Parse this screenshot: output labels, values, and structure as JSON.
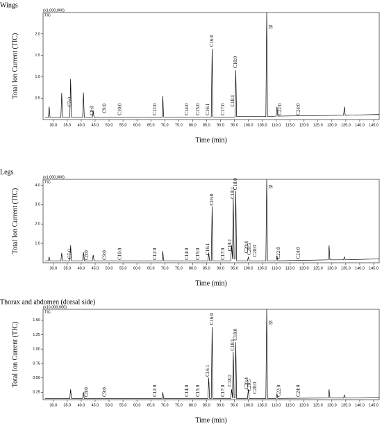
{
  "chart_data": [
    {
      "type": "line",
      "title": "Wings",
      "scale_note": "(x1,000,000)",
      "trace_label": "TIC",
      "ylabel": "Total Ion Current (TIC)",
      "xlabel": "Time (min)",
      "color": "#000000",
      "xlim": [
        26.3,
        147
      ],
      "ylim": [
        0,
        2.5
      ],
      "xticks": [
        {
          "value": 30,
          "label": "30.0"
        },
        {
          "value": 35,
          "label": "35.0"
        },
        {
          "value": 40,
          "label": "40.0"
        },
        {
          "value": 45,
          "label": "45.0"
        },
        {
          "value": 50,
          "label": "50.0"
        },
        {
          "value": 55,
          "label": "55.0"
        },
        {
          "value": 60,
          "label": "60.0"
        },
        {
          "value": 65,
          "label": "65.0"
        },
        {
          "value": 70,
          "label": "70.0"
        },
        {
          "value": 75,
          "label": "75.0"
        },
        {
          "value": 80,
          "label": "80.0"
        },
        {
          "value": 85,
          "label": "85.0"
        },
        {
          "value": 90,
          "label": "90.0"
        },
        {
          "value": 95,
          "label": "95.0"
        },
        {
          "value": 100,
          "label": "100.0"
        },
        {
          "value": 105,
          "label": "105.0"
        },
        {
          "value": 110,
          "label": "110.0"
        },
        {
          "value": 115,
          "label": "115.0"
        },
        {
          "value": 120,
          "label": "120.0"
        },
        {
          "value": 125,
          "label": "125.0"
        },
        {
          "value": 130,
          "label": "130.0"
        },
        {
          "value": 135,
          "label": "135.0"
        },
        {
          "value": 140,
          "label": "140.0"
        },
        {
          "value": 145,
          "label": "145.0"
        }
      ],
      "yticks": [
        0.5,
        {
          "value": 1,
          "label": "1.0"
        },
        1.5,
        {
          "value": 2,
          "label": "2.0"
        }
      ],
      "x": [
        27,
        28.2,
        28.5,
        28.8,
        32.7,
        33,
        33.3,
        35.9,
        36.2,
        36.5,
        40.5,
        40.8,
        41.1,
        44,
        44.3,
        44.6,
        69,
        69.3,
        69.6,
        86.7,
        87,
        87.3,
        95.2,
        95.5,
        95.8,
        106.3,
        106.6,
        106.9,
        110,
        110.3,
        110.6,
        134.2,
        134.5,
        134.8,
        147
      ],
      "values": [
        0.05,
        0.05,
        0.3,
        0.05,
        0.05,
        0.62,
        0.05,
        0.05,
        0.95,
        0.05,
        0.05,
        0.63,
        0.05,
        0.05,
        0.2,
        0.05,
        0.05,
        0.55,
        0.06,
        0.06,
        1.65,
        0.06,
        0.06,
        1.15,
        0.07,
        0.07,
        2.5,
        0.07,
        0.08,
        0.3,
        0.08,
        0.1,
        0.3,
        0.1,
        0.12
      ],
      "annotations": [
        {
          "text": "C7:0",
          "x": 36,
          "y": 0.3
        },
        {
          "text": "C8:0",
          "x": 44,
          "y": 0.1
        },
        {
          "text": "C9:0",
          "x": 48.5,
          "y": 0.15
        },
        {
          "text": "C10:0",
          "x": 54,
          "y": 0.1
        },
        {
          "text": "C12:0",
          "x": 66.5,
          "y": 0.1
        },
        {
          "text": "C14:0",
          "x": 78,
          "y": 0.1
        },
        {
          "text": "C15:0",
          "x": 82,
          "y": 0.1
        },
        {
          "text": "C16:1",
          "x": 85.5,
          "y": 0.1
        },
        {
          "text": "C16:0",
          "x": 87,
          "y": 1.7
        },
        {
          "text": "C17:0",
          "x": 91,
          "y": 0.1
        },
        {
          "text": "C18:1",
          "x": 94.5,
          "y": 0.3
        },
        {
          "text": "C18:0",
          "x": 95.5,
          "y": 1.2
        },
        {
          "text": "IS",
          "x": 108,
          "y": 2.15,
          "orientation": "horizontal"
        },
        {
          "text": "C22:0",
          "x": 111.5,
          "y": 0.1
        },
        {
          "text": "C24:0",
          "x": 118,
          "y": 0.1
        }
      ]
    },
    {
      "type": "line",
      "title": "Legs",
      "scale_note": "(x1,000,000)",
      "trace_label": "TIC",
      "ylabel": "Total Ion Current (TIC)",
      "xlabel": "Time (min)",
      "color": "#000000",
      "xlim": [
        26.3,
        147
      ],
      "ylim": [
        0,
        4.3
      ],
      "xticks": [
        {
          "value": 30,
          "label": "30.0"
        },
        {
          "value": 35,
          "label": "35.0"
        },
        {
          "value": 40,
          "label": "40.0"
        },
        {
          "value": 45,
          "label": "45.0"
        },
        {
          "value": 50,
          "label": "50.0"
        },
        {
          "value": 55,
          "label": "55.0"
        },
        {
          "value": 60,
          "label": "60.0"
        },
        {
          "value": 65,
          "label": "65.0"
        },
        {
          "value": 70,
          "label": "70.0"
        },
        {
          "value": 75,
          "label": "75.0"
        },
        {
          "value": 80,
          "label": "80.0"
        },
        {
          "value": 85,
          "label": "85.0"
        },
        {
          "value": 90,
          "label": "90.0"
        },
        {
          "value": 95,
          "label": "95.0"
        },
        {
          "value": 100,
          "label": "100.0"
        },
        {
          "value": 105,
          "label": "105.0"
        },
        {
          "value": 110,
          "label": "110.0"
        },
        {
          "value": 115,
          "label": "115.0"
        },
        {
          "value": 120,
          "label": "120.0"
        },
        {
          "value": 125,
          "label": "125.0"
        },
        {
          "value": 130,
          "label": "130.0"
        },
        {
          "value": 135,
          "label": "135.0"
        },
        {
          "value": 140,
          "label": "140.0"
        },
        {
          "value": 145,
          "label": "145.0"
        }
      ],
      "yticks": [
        {
          "value": 1,
          "label": "1.0"
        },
        {
          "value": 2,
          "label": "2.0"
        },
        {
          "value": 3,
          "label": "3.0"
        },
        {
          "value": 4,
          "label": "4.0"
        }
      ],
      "x": [
        27,
        28.2,
        28.5,
        28.8,
        32.7,
        33,
        33.3,
        35.9,
        36.2,
        36.5,
        40.5,
        40.8,
        41.1,
        44,
        44.3,
        44.6,
        69,
        69.3,
        69.6,
        85.5,
        85.8,
        86.1,
        86.7,
        87,
        87.3,
        93.7,
        94,
        94.3,
        94.6,
        94.9,
        95.2,
        95.5,
        95.8,
        99.7,
        100,
        100.3,
        106.3,
        106.6,
        106.9,
        110,
        110.3,
        110.6,
        128.7,
        129,
        129.3,
        134.2,
        134.5,
        134.8,
        147
      ],
      "values": [
        0.1,
        0.1,
        0.3,
        0.1,
        0.1,
        0.5,
        0.1,
        0.1,
        0.9,
        0.1,
        0.1,
        0.55,
        0.1,
        0.1,
        0.4,
        0.1,
        0.1,
        0.6,
        0.1,
        0.1,
        0.5,
        0.1,
        0.1,
        2.9,
        0.1,
        0.1,
        0.9,
        0.2,
        3.3,
        0.2,
        0.2,
        3.7,
        0.1,
        0.1,
        0.3,
        0.1,
        0.1,
        4.3,
        0.1,
        0.1,
        0.35,
        0.1,
        0.15,
        0.9,
        0.15,
        0.15,
        0.3,
        0.15,
        0.2
      ],
      "annotations": [
        {
          "text": "C7:0",
          "x": 36,
          "y": 0.2
        },
        {
          "text": "C8:0",
          "x": 42,
          "y": 0.15
        },
        {
          "text": "C9:0",
          "x": 48.5,
          "y": 0.15
        },
        {
          "text": "C10:0",
          "x": 54,
          "y": 0.15
        },
        {
          "text": "C12:0",
          "x": 66.5,
          "y": 0.15
        },
        {
          "text": "C14:0",
          "x": 78,
          "y": 0.15
        },
        {
          "text": "C15:0",
          "x": 82,
          "y": 0.15
        },
        {
          "text": "C16:1",
          "x": 85.5,
          "y": 0.4
        },
        {
          "text": "C16:0",
          "x": 87,
          "y": 2.95
        },
        {
          "text": "C17:0",
          "x": 91,
          "y": 0.15
        },
        {
          "text": "C18:2",
          "x": 93.5,
          "y": 0.6
        },
        {
          "text": "C18:1",
          "x": 94.5,
          "y": 3.3
        },
        {
          "text": "C18:0",
          "x": 95.5,
          "y": 3.75
        },
        {
          "text": "C20:4",
          "x": 99.5,
          "y": 0.5
        },
        {
          "text": "C20:5",
          "x": 100.5,
          "y": 0.4
        },
        {
          "text": "C20:0",
          "x": 102.5,
          "y": 0.3
        },
        {
          "text": "IS",
          "x": 108,
          "y": 3.9,
          "orientation": "horizontal"
        },
        {
          "text": "C22:0",
          "x": 111,
          "y": 0.2
        },
        {
          "text": "C24:0",
          "x": 118,
          "y": 0.2
        }
      ]
    },
    {
      "type": "line",
      "title": "Thorax and abdomen (dorsal side)",
      "scale_note": "(x10,000,000)",
      "trace_label": "TIC",
      "ylabel": "Total Ion Current (TIC)",
      "xlabel": "Time (min)",
      "color": "#000000",
      "xlim": [
        26.3,
        147
      ],
      "ylim": [
        0.12,
        1.69
      ],
      "xticks": [
        {
          "value": 30,
          "label": "30.0"
        },
        {
          "value": 35,
          "label": "35.0"
        },
        {
          "value": 40,
          "label": "40.0"
        },
        {
          "value": 45,
          "label": "45.0"
        },
        {
          "value": 50,
          "label": "50.0"
        },
        {
          "value": 55,
          "label": "55.0"
        },
        {
          "value": 60,
          "label": "60.0"
        },
        {
          "value": 65,
          "label": "65.0"
        },
        {
          "value": 70,
          "label": "70.0"
        },
        {
          "value": 75,
          "label": "75.0"
        },
        {
          "value": 80,
          "label": "80.0"
        },
        {
          "value": 85,
          "label": "85.0"
        },
        {
          "value": 90,
          "label": "90.0"
        },
        {
          "value": 95,
          "label": "95.0"
        },
        {
          "value": 100,
          "label": "100.0"
        },
        {
          "value": 105,
          "label": "105.0"
        },
        {
          "value": 110,
          "label": "110.0"
        },
        {
          "value": 115,
          "label": "115.0"
        },
        {
          "value": 120,
          "label": "120.0"
        },
        {
          "value": 125,
          "label": "125.0"
        },
        {
          "value": 130,
          "label": "130.0"
        },
        {
          "value": 135,
          "label": "135.0"
        },
        {
          "value": 140,
          "label": "140.0"
        },
        {
          "value": 145,
          "label": "145.0"
        }
      ],
      "yticks": [
        0.25,
        {
          "value": 0.5,
          "label": "0.50"
        },
        0.75,
        {
          "value": 1,
          "label": "1.00"
        },
        1.25,
        {
          "value": 1.5,
          "label": "1.50"
        }
      ],
      "x": [
        27,
        35.9,
        36.2,
        36.5,
        40.5,
        40.8,
        41.1,
        69,
        69.3,
        69.6,
        85.5,
        85.8,
        86.1,
        86.7,
        87,
        87.3,
        93.7,
        94,
        94.3,
        94.6,
        94.9,
        95.2,
        95.5,
        95.8,
        99.7,
        100,
        100.3,
        106.3,
        106.6,
        106.9,
        110,
        110.3,
        110.6,
        128.7,
        129,
        129.3,
        134.2,
        134.5,
        134.8,
        147
      ],
      "values": [
        0.14,
        0.14,
        0.3,
        0.14,
        0.14,
        0.25,
        0.14,
        0.14,
        0.25,
        0.14,
        0.14,
        0.5,
        0.14,
        0.14,
        1.38,
        0.14,
        0.14,
        0.3,
        0.15,
        0.95,
        0.15,
        0.15,
        1.12,
        0.14,
        0.14,
        0.3,
        0.14,
        0.14,
        1.69,
        0.14,
        0.14,
        0.22,
        0.14,
        0.15,
        0.3,
        0.15,
        0.15,
        0.2,
        0.15,
        0.16
      ],
      "annotations": [
        {
          "text": "C8:0",
          "x": 42,
          "y": 0.17
        },
        {
          "text": "C9:0",
          "x": 48.5,
          "y": 0.17
        },
        {
          "text": "C12:0",
          "x": 66.5,
          "y": 0.17
        },
        {
          "text": "C14:0",
          "x": 78,
          "y": 0.17
        },
        {
          "text": "C15:0",
          "x": 82,
          "y": 0.17
        },
        {
          "text": "C16:1",
          "x": 85.5,
          "y": 0.52
        },
        {
          "text": "C16:0",
          "x": 87,
          "y": 1.42
        },
        {
          "text": "C17:0",
          "x": 91,
          "y": 0.17
        },
        {
          "text": "C18:2",
          "x": 93.5,
          "y": 0.35
        },
        {
          "text": "C18:1",
          "x": 94.5,
          "y": 0.97
        },
        {
          "text": "C18:0",
          "x": 95.5,
          "y": 1.15
        },
        {
          "text": "C20:4",
          "x": 99.5,
          "y": 0.3
        },
        {
          "text": "C20:5",
          "x": 100.5,
          "y": 0.27
        },
        {
          "text": "C20:0",
          "x": 102.5,
          "y": 0.22
        },
        {
          "text": "IS",
          "x": 108,
          "y": 1.45,
          "orientation": "horizontal"
        },
        {
          "text": "C22:0",
          "x": 111,
          "y": 0.17
        },
        {
          "text": "C24:0",
          "x": 118,
          "y": 0.17
        }
      ]
    }
  ]
}
